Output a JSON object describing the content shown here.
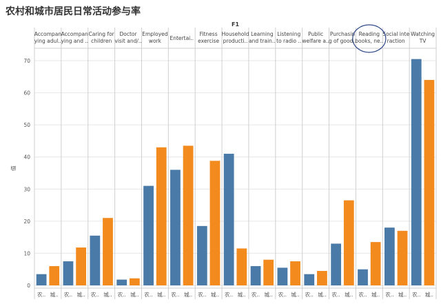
{
  "title": "农村和城市居民日常活动参与率",
  "facet_label": "F1",
  "colors": {
    "rural": "#4a7aa8",
    "urban": "#f28a1d",
    "grid": "#e6e6e6",
    "sep": "#cfcfcf"
  },
  "chart_data": {
    "type": "bar",
    "ylabel": "值",
    "ylim": [
      0,
      72
    ],
    "yticks": [
      0,
      10,
      20,
      30,
      40,
      50,
      60,
      70
    ],
    "categories": [
      [
        "Accompan",
        "ying adul.."
      ],
      [
        "Accompan",
        "ying and .."
      ],
      [
        "Caring for",
        "children"
      ],
      [
        "Doctor",
        "visit and/.."
      ],
      [
        "Employed",
        "work"
      ],
      [
        "Entertai.."
      ],
      [
        "Fitness",
        "exercise"
      ],
      [
        "Household",
        "producti.."
      ],
      [
        "Learning",
        "and train.."
      ],
      [
        "Listening",
        "to radio .."
      ],
      [
        "Public",
        "welfare a.."
      ],
      [
        "Purchasin",
        "g of good.."
      ],
      [
        "Reading",
        "books, ne.."
      ],
      [
        "Social inte",
        "raction"
      ],
      [
        "Watching",
        "TV"
      ]
    ],
    "x_tick_labels": [
      "农..",
      "城.."
    ],
    "series": [
      {
        "name": "",
        "values": [
          3.5,
          7.5,
          15.5,
          1.8,
          31,
          36,
          18.5,
          41,
          6,
          5.5,
          3.5,
          13,
          5,
          18,
          70.5
        ]
      },
      {
        "name": "",
        "values": [
          6,
          11.8,
          21,
          2.2,
          43,
          43.5,
          38.8,
          11.5,
          8,
          7.5,
          4.5,
          26.5,
          13.5,
          17,
          64
        ]
      }
    ]
  }
}
